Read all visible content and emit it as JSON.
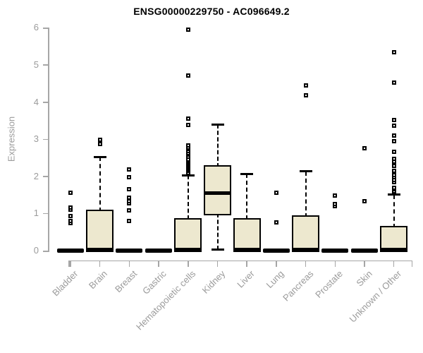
{
  "chart_data": {
    "type": "boxplot",
    "title": "ENSG00000229750 - AC096649.2",
    "ylabel": "Expression",
    "xlabel": "",
    "ylim": [
      0,
      6
    ],
    "yticks": [
      0,
      1,
      2,
      3,
      4,
      5,
      6
    ],
    "grid": false,
    "legend": "none",
    "colors": {
      "box_fill": "#EDE8CF",
      "box_stroke": "#000000",
      "axis_line": "#A6A6A6",
      "tick_text": "#9B9B9B",
      "title_text": "#000000"
    },
    "categories": [
      "Bladder",
      "Brain",
      "Breast",
      "Gastric",
      "Hematopoietic cells",
      "Kidney",
      "Liver",
      "Lung",
      "Pancreas",
      "Prostate",
      "Skin",
      "Unknown / Other"
    ],
    "series": [
      {
        "category": "Bladder",
        "flat": true,
        "lo": 0,
        "q1": 0,
        "median": 0.02,
        "q3": 0,
        "hi": 0,
        "outliers": [
          0.74,
          0.79,
          0.93,
          1.1,
          1.16,
          1.55
        ]
      },
      {
        "category": "Brain",
        "flat": false,
        "lo": 0,
        "q1": 0,
        "median": 0.03,
        "q3": 1.05,
        "hi": 2.52,
        "outliers": [
          2.87,
          2.98
        ]
      },
      {
        "category": "Breast",
        "flat": true,
        "lo": 0,
        "q1": 0,
        "median": 0.02,
        "q3": 0,
        "hi": 0,
        "outliers": [
          0.79,
          1.08,
          1.27,
          1.33,
          1.43,
          1.65,
          1.98,
          2.19
        ]
      },
      {
        "category": "Gastric",
        "flat": true,
        "lo": 0,
        "q1": 0,
        "median": 0.02,
        "q3": 0,
        "hi": 0,
        "outliers": []
      },
      {
        "category": "Hematopoietic cells",
        "flat": false,
        "lo": 0,
        "q1": 0,
        "median": 0.03,
        "q3": 0.83,
        "hi": 2.03,
        "outliers": [
          2.06,
          2.1,
          2.14,
          2.18,
          2.22,
          2.26,
          2.3,
          2.34,
          2.38,
          2.42,
          2.46,
          2.52,
          2.58,
          2.63,
          2.68,
          2.73,
          2.78,
          2.83,
          3.39,
          3.55,
          4.72,
          5.94
        ]
      },
      {
        "category": "Kidney",
        "flat": false,
        "lo": 0.02,
        "q1": 1.0,
        "median": 1.55,
        "q3": 2.25,
        "hi": 3.4,
        "outliers": []
      },
      {
        "category": "Liver",
        "flat": false,
        "lo": 0,
        "q1": 0,
        "median": 0.03,
        "q3": 0.83,
        "hi": 2.07,
        "outliers": []
      },
      {
        "category": "Lung",
        "flat": true,
        "lo": 0,
        "q1": 0,
        "median": 0.02,
        "q3": 0,
        "hi": 0,
        "outliers": [
          0.76,
          1.55
        ]
      },
      {
        "category": "Pancreas",
        "flat": false,
        "lo": 0,
        "q1": 0,
        "median": 0.03,
        "q3": 0.9,
        "hi": 2.13,
        "outliers": [
          4.18,
          4.45
        ]
      },
      {
        "category": "Prostate",
        "flat": true,
        "lo": 0,
        "q1": 0,
        "median": 0.02,
        "q3": 0,
        "hi": 0,
        "outliers": [
          1.2,
          1.25,
          1.48
        ]
      },
      {
        "category": "Skin",
        "flat": true,
        "lo": 0,
        "q1": 0,
        "median": 0.02,
        "q3": 0,
        "hi": 0,
        "outliers": [
          1.33,
          2.76
        ]
      },
      {
        "category": "Unknown / Other",
        "flat": false,
        "lo": 0,
        "q1": 0,
        "median": 0.03,
        "q3": 0.61,
        "hi": 1.51,
        "outliers": [
          1.55,
          1.6,
          1.65,
          1.7,
          1.84,
          1.9,
          1.97,
          2.03,
          2.15,
          2.28,
          2.4,
          2.47,
          2.66,
          2.95,
          3.1,
          3.36,
          3.52,
          4.53,
          5.34
        ]
      }
    ]
  }
}
